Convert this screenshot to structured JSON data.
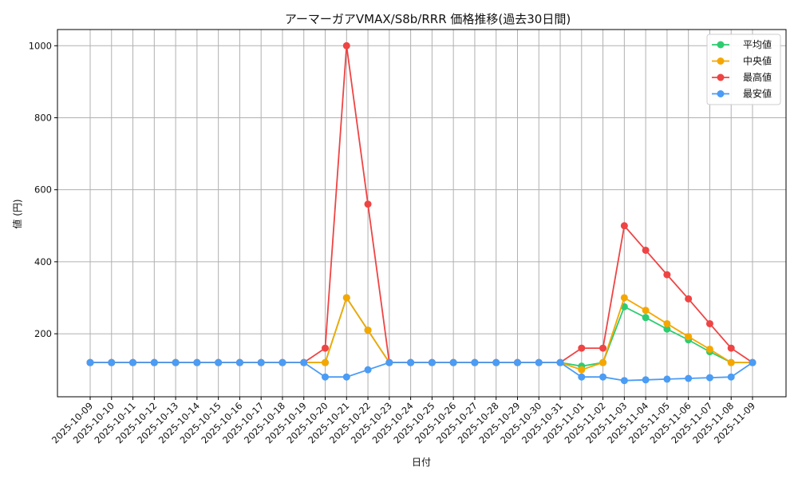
{
  "chart_data": {
    "type": "line",
    "title": "アーマーガアVMAX/S8b/RRR 価格推移(過去30日間)",
    "xlabel": "日付",
    "ylabel": "値 (円)",
    "categories": [
      "2025-10-09",
      "2025-10-10",
      "2025-10-11",
      "2025-10-12",
      "2025-10-13",
      "2025-10-14",
      "2025-10-15",
      "2025-10-16",
      "2025-10-17",
      "2025-10-18",
      "2025-10-19",
      "2025-10-20",
      "2025-10-21",
      "2025-10-22",
      "2025-10-23",
      "2025-10-24",
      "2025-10-25",
      "2025-10-26",
      "2025-10-27",
      "2025-10-28",
      "2025-10-29",
      "2025-10-30",
      "2025-10-31",
      "2025-11-01",
      "2025-11-02",
      "2025-11-03",
      "2025-11-04",
      "2025-11-05",
      "2025-11-06",
      "2025-11-07",
      "2025-11-08",
      "2025-11-09"
    ],
    "ylim": [
      25,
      1045
    ],
    "yticks": [
      200,
      400,
      600,
      800,
      1000
    ],
    "grid": true,
    "legend_position": "top-right",
    "series": [
      {
        "name": "平均値",
        "color": "#2ecc71",
        "values": [
          120,
          120,
          120,
          120,
          120,
          120,
          120,
          120,
          120,
          120,
          120,
          120,
          300,
          210,
          120,
          120,
          120,
          120,
          120,
          120,
          120,
          120,
          120,
          110,
          120,
          275,
          245,
          213,
          183,
          150,
          120,
          120
        ]
      },
      {
        "name": "中央値",
        "color": "#f5a700",
        "values": [
          120,
          120,
          120,
          120,
          120,
          120,
          120,
          120,
          120,
          120,
          120,
          120,
          300,
          210,
          120,
          120,
          120,
          120,
          120,
          120,
          120,
          120,
          120,
          100,
          120,
          300,
          265,
          228,
          192,
          157,
          120,
          120
        ]
      },
      {
        "name": "最高値",
        "color": "#ef4444",
        "values": [
          120,
          120,
          120,
          120,
          120,
          120,
          120,
          120,
          120,
          120,
          120,
          160,
          1000,
          560,
          120,
          120,
          120,
          120,
          120,
          120,
          120,
          120,
          120,
          160,
          160,
          500,
          432,
          364,
          297,
          228,
          160,
          120
        ]
      },
      {
        "name": "最安値",
        "color": "#4a9cf5",
        "values": [
          120,
          120,
          120,
          120,
          120,
          120,
          120,
          120,
          120,
          120,
          120,
          80,
          80,
          100,
          120,
          120,
          120,
          120,
          120,
          120,
          120,
          120,
          120,
          80,
          80,
          70,
          72,
          74,
          76,
          78,
          80,
          120
        ]
      }
    ]
  }
}
